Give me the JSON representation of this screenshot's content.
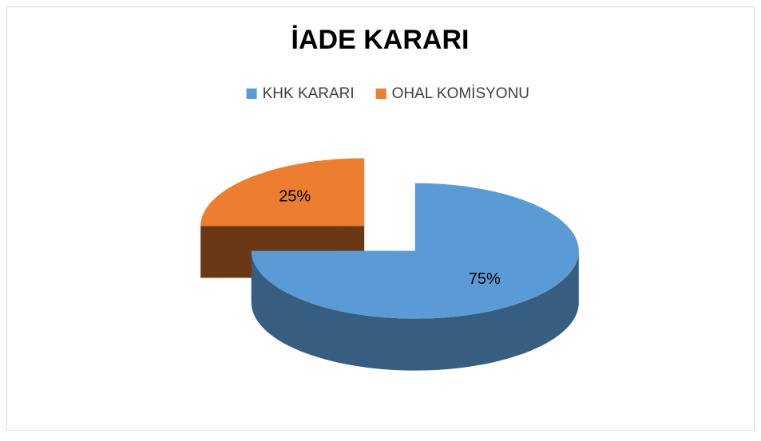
{
  "chart_data": {
    "type": "pie",
    "title": "İADE KARARI",
    "categories": [
      "KHK KARARI",
      "OHAL KOMİSYONU"
    ],
    "values": [
      75,
      25
    ],
    "value_labels": [
      "75%",
      "25%"
    ],
    "colors": [
      "#5b9bd5",
      "#ed7d31"
    ],
    "legend": "top"
  }
}
